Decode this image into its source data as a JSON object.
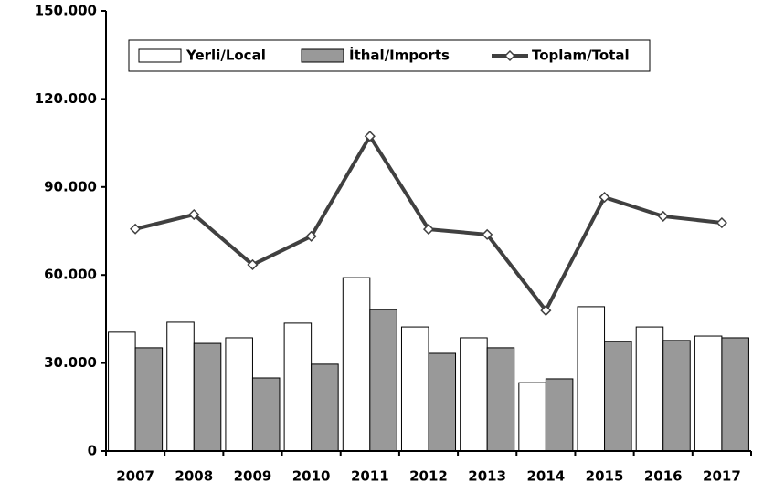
{
  "chart_data": {
    "type": "bar_line",
    "categories": [
      "2007",
      "2008",
      "2009",
      "2010",
      "2011",
      "2012",
      "2013",
      "2014",
      "2015",
      "2016",
      "2017"
    ],
    "series": [
      {
        "name": "Yerli/Local",
        "color": "#ffffff",
        "kind": "bar",
        "values": [
          40500,
          43900,
          38600,
          43600,
          59100,
          42300,
          38600,
          23300,
          49200,
          42300,
          39200
        ]
      },
      {
        "name": "İthal/Imports",
        "color": "#999999",
        "kind": "bar",
        "values": [
          35200,
          36700,
          24900,
          29600,
          48200,
          33300,
          35200,
          24600,
          37300,
          37700,
          38600
        ]
      },
      {
        "name": "Toplam/Total",
        "color": "#404040",
        "kind": "line",
        "values": [
          75700,
          80600,
          63500,
          73200,
          107300,
          75600,
          73800,
          47900,
          86500,
          80000,
          77800
        ]
      }
    ],
    "ylim": [
      0,
      150000
    ],
    "yticks": [
      0,
      {
        "value": 30000,
        "label": "30.000"
      },
      {
        "value": 60000,
        "label": "60.000"
      },
      {
        "value": 90000,
        "label": "90.000"
      },
      {
        "value": 120000,
        "label": "120.000"
      },
      {
        "value": 150000,
        "label": "150.000"
      }
    ]
  }
}
